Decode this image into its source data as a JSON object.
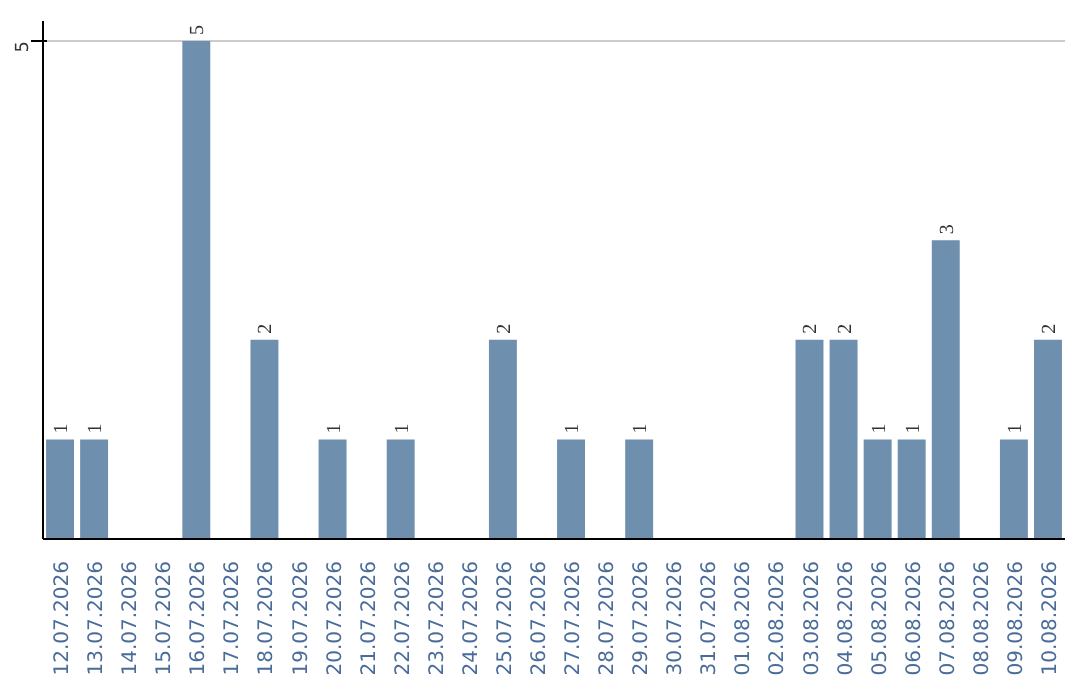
{
  "chart_data": {
    "type": "bar",
    "categories": [
      "12.07.2026",
      "13.07.2026",
      "14.07.2026",
      "15.07.2026",
      "16.07.2026",
      "17.07.2026",
      "18.07.2026",
      "19.07.2026",
      "20.07.2026",
      "21.07.2026",
      "22.07.2026",
      "23.07.2026",
      "24.07.2026",
      "25.07.2026",
      "26.07.2026",
      "27.07.2026",
      "28.07.2026",
      "29.07.2026",
      "30.07.2026",
      "31.07.2026",
      "01.08.2026",
      "02.08.2026",
      "03.08.2026",
      "04.08.2026",
      "05.08.2026",
      "06.08.2026",
      "07.08.2026",
      "08.08.2026",
      "09.08.2026",
      "10.08.2026"
    ],
    "values": [
      1,
      1,
      0,
      0,
      5,
      0,
      2,
      0,
      1,
      0,
      1,
      0,
      0,
      2,
      0,
      1,
      0,
      1,
      0,
      0,
      0,
      0,
      2,
      2,
      1,
      1,
      3,
      0,
      1,
      2
    ],
    "value_labels": [
      "1",
      "1",
      null,
      null,
      "5",
      null,
      "2",
      null,
      "1",
      null,
      "1",
      null,
      null,
      "2",
      null,
      "1",
      null,
      "1",
      null,
      null,
      null,
      null,
      "2",
      "2",
      "1",
      "1",
      "3",
      null,
      "1",
      "2"
    ],
    "color": "#6f8fae",
    "ylim": [
      0,
      5.2
    ],
    "yticks": [
      5
    ],
    "grid": "y"
  }
}
